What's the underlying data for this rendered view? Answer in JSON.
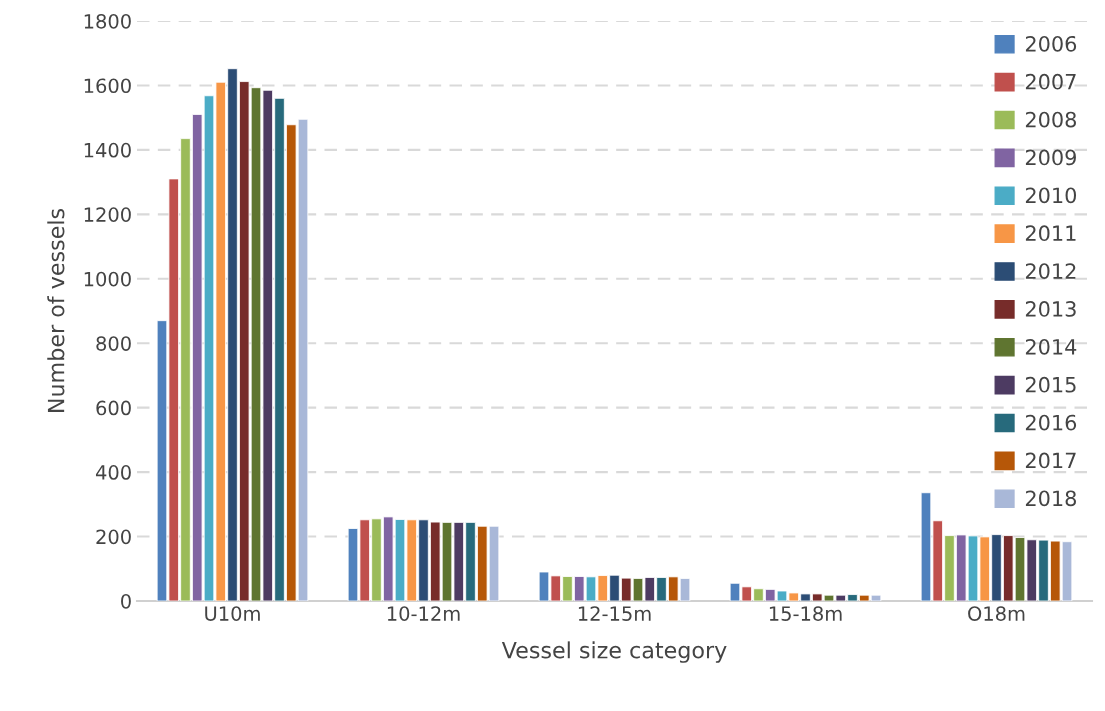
{
  "chart_data": {
    "type": "bar",
    "xlabel": "Vessel size category",
    "ylabel": "Number of vessels",
    "categories": [
      "U10m",
      "10-12m",
      "12-15m",
      "15-18m",
      "O18m"
    ],
    "ylim": [
      0,
      1800
    ],
    "yticks": [
      0,
      200,
      400,
      600,
      800,
      1000,
      1200,
      1400,
      1600,
      1800
    ],
    "grid": "y",
    "legend": "top right",
    "series": [
      {
        "name": "2006",
        "color": "#4f81bd",
        "values": [
          870,
          225,
          90,
          55,
          336
        ]
      },
      {
        "name": "2007",
        "color": "#c0504d",
        "values": [
          1310,
          252,
          78,
          44,
          249
        ]
      },
      {
        "name": "2008",
        "color": "#9bbb59",
        "values": [
          1435,
          255,
          76,
          38,
          203
        ]
      },
      {
        "name": "2009",
        "color": "#8064a2",
        "values": [
          1510,
          261,
          76,
          36,
          205
        ]
      },
      {
        "name": "2010",
        "color": "#4bacc6",
        "values": [
          1568,
          253,
          75,
          31,
          202
        ]
      },
      {
        "name": "2011",
        "color": "#f79646",
        "values": [
          1610,
          252,
          79,
          25,
          199
        ]
      },
      {
        "name": "2012",
        "color": "#2c4d75",
        "values": [
          1652,
          252,
          80,
          22,
          206
        ]
      },
      {
        "name": "2013",
        "color": "#772c2a",
        "values": [
          1612,
          245,
          71,
          22,
          203
        ]
      },
      {
        "name": "2014",
        "color": "#5f7530",
        "values": [
          1593,
          244,
          70,
          18,
          197
        ]
      },
      {
        "name": "2015",
        "color": "#4d3b62",
        "values": [
          1585,
          244,
          73,
          18,
          190
        ]
      },
      {
        "name": "2016",
        "color": "#276a7c",
        "values": [
          1560,
          244,
          73,
          20,
          189
        ]
      },
      {
        "name": "2017",
        "color": "#b65708",
        "values": [
          1478,
          232,
          75,
          18,
          186
        ]
      },
      {
        "name": "2018",
        "color": "#a9b8d8",
        "values": [
          1495,
          232,
          70,
          18,
          184
        ]
      }
    ]
  }
}
